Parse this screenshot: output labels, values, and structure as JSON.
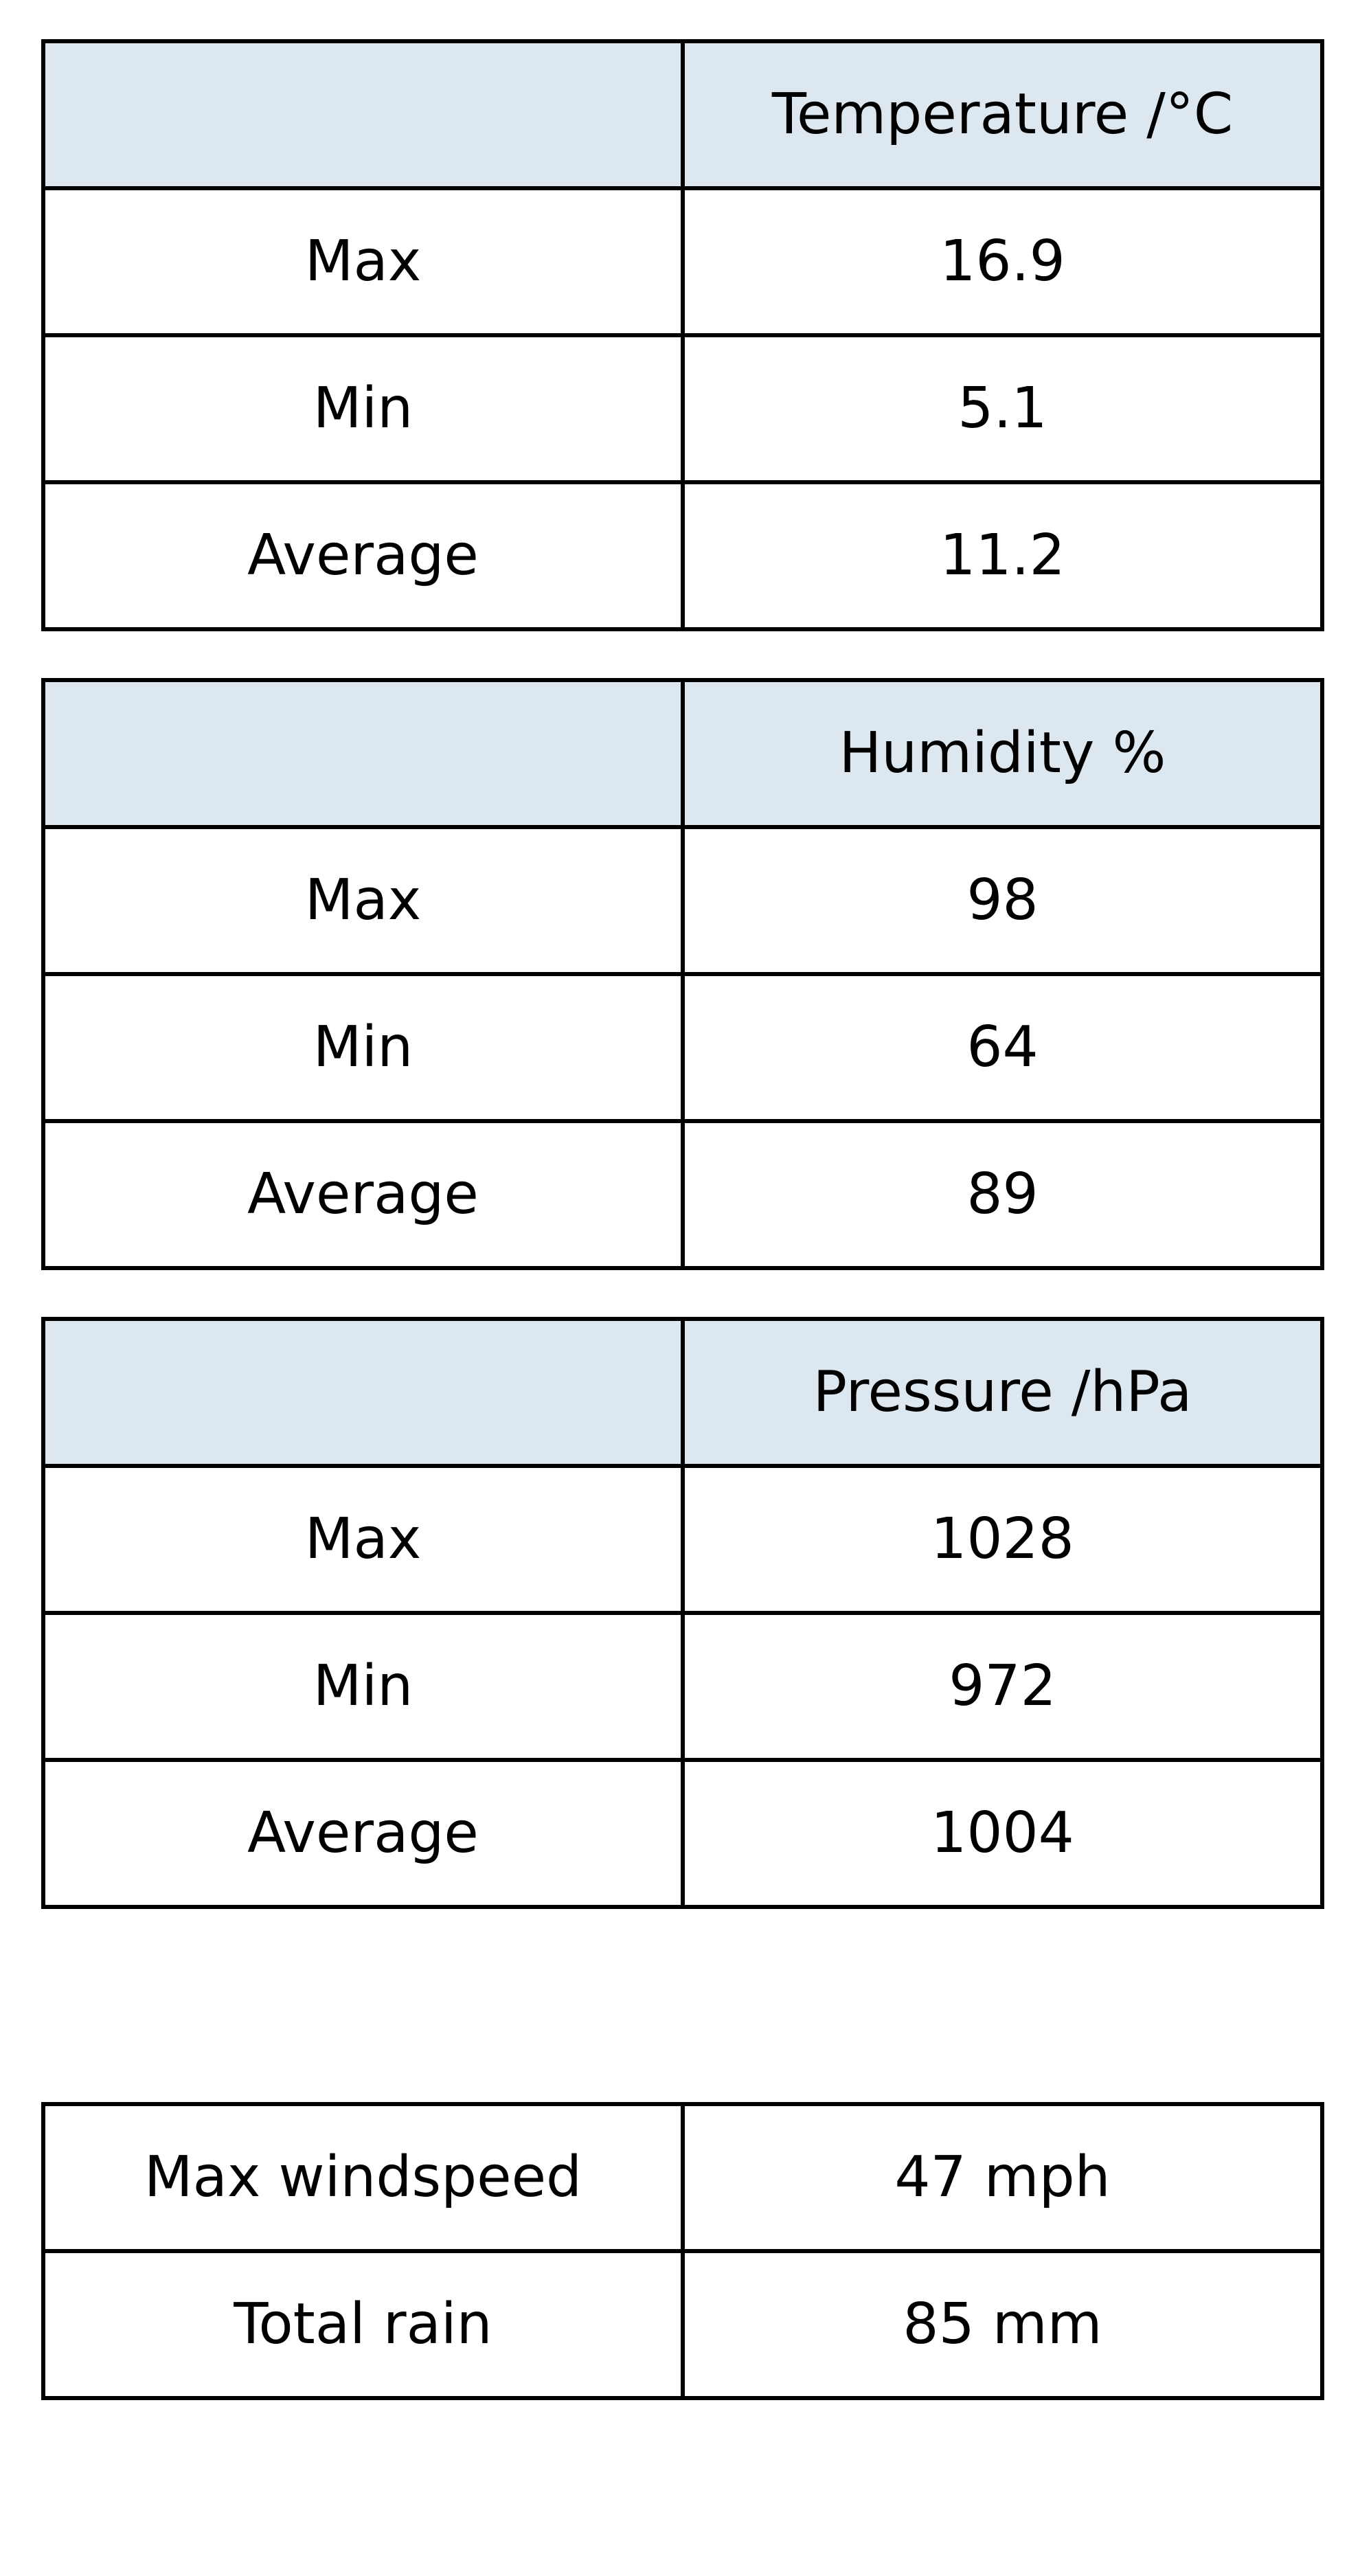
{
  "tables": [
    {
      "header": "Temperature /°C",
      "rows": [
        {
          "label": "Max",
          "value": "16.9"
        },
        {
          "label": "Min",
          "value": "5.1"
        },
        {
          "label": "Average",
          "value": "11.2"
        }
      ]
    },
    {
      "header": "Humidity %",
      "rows": [
        {
          "label": "Max",
          "value": "98"
        },
        {
          "label": "Min",
          "value": "64"
        },
        {
          "label": "Average",
          "value": "89"
        }
      ]
    },
    {
      "header": "Pressure /hPa",
      "rows": [
        {
          "label": "Max",
          "value": "1028"
        },
        {
          "label": "Min",
          "value": "972"
        },
        {
          "label": "Average",
          "value": "1004"
        }
      ]
    }
  ],
  "totals": [
    {
      "label": "Max windspeed",
      "value": "47 mph"
    },
    {
      "label": "Total rain",
      "value": "85 mm"
    }
  ],
  "colors": {
    "header_background": "#dce7f0",
    "border": "#000000"
  }
}
